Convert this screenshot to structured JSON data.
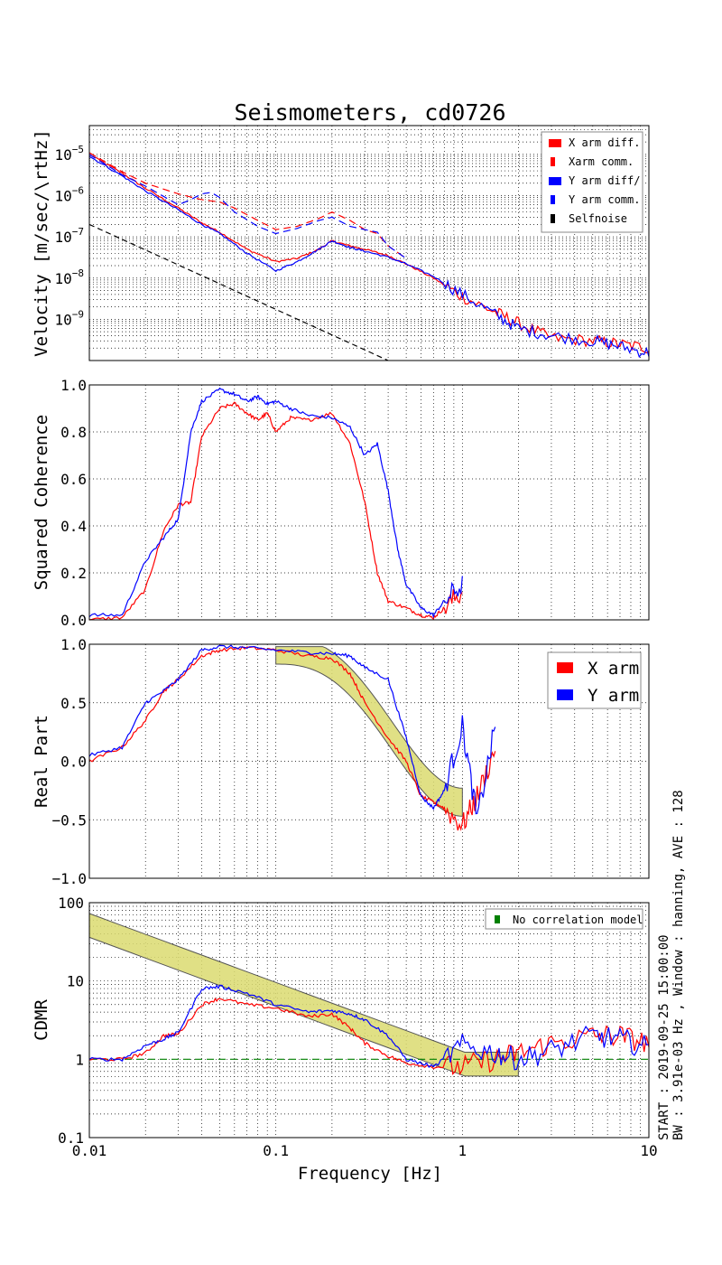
{
  "figure": {
    "title": "Seismometers, cd0726",
    "xlabel": "Frequency [Hz]",
    "side_note_1": "START : 2019-09-25 15:00:00",
    "side_note_2": "BW : 3.91e-03 Hz , Window : hanning, AVE : 128"
  },
  "chart_data": [
    {
      "type": "line",
      "ylabel": "Velocity [m/sec/\\rtHz]",
      "xscale": "log",
      "yscale": "log",
      "xlim": [
        0.01,
        10
      ],
      "ylim": [
        1e-10,
        5e-05
      ],
      "ytick_labels": [
        "10^-5",
        "10^-6",
        "10^-7",
        "10^-8",
        "10^-9"
      ],
      "grid": true,
      "legend": "top-right",
      "series": [
        {
          "name": "X arm diff.",
          "color": "#ff0000",
          "style": "solid",
          "x": [
            0.01,
            0.015,
            0.02,
            0.03,
            0.04,
            0.05,
            0.07,
            0.1,
            0.13,
            0.17,
            0.2,
            0.25,
            0.3,
            0.4,
            0.5,
            0.7,
            1,
            1.5,
            2,
            3,
            5,
            7,
            10
          ],
          "y": [
            1e-05,
            3.5e-06,
            1.5e-06,
            5e-07,
            2.2e-07,
            1.3e-07,
            5e-08,
            2.5e-08,
            3e-08,
            5e-08,
            8e-08,
            6e-08,
            5e-08,
            3.5e-08,
            2.2e-08,
            1e-08,
            3.5e-09,
            1.5e-09,
            8e-10,
            3.5e-10,
            3e-10,
            2.5e-10,
            2e-10
          ]
        },
        {
          "name": "Xarm comm.",
          "color": "#ff0000",
          "style": "dashed",
          "x": [
            0.01,
            0.015,
            0.02,
            0.03,
            0.04,
            0.05,
            0.06,
            0.08,
            0.1,
            0.13,
            0.17,
            0.2,
            0.25,
            0.3,
            0.35,
            0.4,
            0.5
          ],
          "y": [
            1.1e-05,
            3.8e-06,
            2e-06,
            1.1e-06,
            8e-07,
            7e-07,
            5e-07,
            2.5e-07,
            1.5e-07,
            1.8e-07,
            2.8e-07,
            4e-07,
            2.5e-07,
            1.5e-07,
            1.2e-07,
            6e-08,
            3e-08
          ]
        },
        {
          "name": "Y arm diff/",
          "color": "#0000ff",
          "style": "solid",
          "x": [
            0.01,
            0.015,
            0.02,
            0.03,
            0.04,
            0.05,
            0.07,
            0.1,
            0.13,
            0.17,
            0.2,
            0.25,
            0.3,
            0.4,
            0.5,
            0.7,
            1,
            1.5,
            2,
            3,
            5,
            7,
            10
          ],
          "y": [
            9e-06,
            3e-06,
            1.3e-06,
            4.5e-07,
            2e-07,
            1.2e-07,
            4e-08,
            1.5e-08,
            2.5e-08,
            5e-08,
            8e-08,
            5.5e-08,
            4.5e-08,
            3.2e-08,
            2.2e-08,
            1.1e-08,
            4e-09,
            1.3e-09,
            6e-10,
            4e-10,
            3e-10,
            2.2e-10,
            1.5e-10
          ]
        },
        {
          "name": "Y arm comm.",
          "color": "#0000ff",
          "style": "dashed",
          "x": [
            0.01,
            0.015,
            0.02,
            0.03,
            0.035,
            0.04,
            0.045,
            0.05,
            0.06,
            0.08,
            0.1,
            0.13,
            0.17,
            0.2,
            0.25,
            0.3,
            0.35,
            0.4,
            0.5
          ],
          "y": [
            1e-05,
            3.2e-06,
            1.7e-06,
            6e-07,
            8e-07,
            1.1e-06,
            1.2e-06,
            9e-07,
            4e-07,
            1.8e-07,
            1.2e-07,
            1.6e-07,
            2.5e-07,
            3e-07,
            1.8e-07,
            1.5e-07,
            1.3e-07,
            6e-08,
            3e-08
          ]
        },
        {
          "name": "Selfnoise",
          "color": "#000000",
          "style": "dashed",
          "x": [
            0.01,
            0.4
          ],
          "y": [
            2e-07,
            1e-10
          ]
        }
      ]
    },
    {
      "type": "line",
      "ylabel": "Squared Coherence",
      "xscale": "log",
      "yscale": "linear",
      "xlim": [
        0.01,
        10
      ],
      "ylim": [
        0,
        1
      ],
      "ytick_labels": [
        "0.0",
        "0.2",
        "0.4",
        "0.6",
        "0.8",
        "1.0"
      ],
      "grid": true,
      "series": [
        {
          "color": "#ff0000",
          "x": [
            0.01,
            0.015,
            0.02,
            0.025,
            0.03,
            0.035,
            0.04,
            0.05,
            0.06,
            0.07,
            0.08,
            0.09,
            0.1,
            0.12,
            0.15,
            0.2,
            0.25,
            0.3,
            0.35,
            0.4,
            0.5,
            0.6,
            0.7,
            0.8,
            1
          ],
          "y": [
            0,
            0.01,
            0.13,
            0.38,
            0.49,
            0.5,
            0.78,
            0.9,
            0.92,
            0.88,
            0.85,
            0.88,
            0.8,
            0.86,
            0.85,
            0.88,
            0.75,
            0.5,
            0.2,
            0.08,
            0.05,
            0.02,
            0.01,
            0.05,
            0.12
          ]
        },
        {
          "color": "#0000ff",
          "x": [
            0.01,
            0.015,
            0.02,
            0.025,
            0.03,
            0.035,
            0.04,
            0.05,
            0.06,
            0.07,
            0.08,
            0.09,
            0.1,
            0.12,
            0.15,
            0.2,
            0.25,
            0.3,
            0.35,
            0.4,
            0.45,
            0.5,
            0.6,
            0.7,
            0.8,
            1
          ],
          "y": [
            0.02,
            0.02,
            0.25,
            0.35,
            0.43,
            0.8,
            0.93,
            0.98,
            0.96,
            0.93,
            0.95,
            0.92,
            0.93,
            0.9,
            0.87,
            0.86,
            0.82,
            0.7,
            0.75,
            0.55,
            0.3,
            0.15,
            0.05,
            0.02,
            0.08,
            0.15
          ]
        }
      ]
    },
    {
      "type": "line",
      "ylabel": "Real Part",
      "xscale": "log",
      "yscale": "linear",
      "xlim": [
        0.01,
        10
      ],
      "ylim": [
        -1,
        1
      ],
      "ytick_labels": [
        "-1.0",
        "-0.5",
        "0.0",
        "0.5",
        "1.0"
      ],
      "grid": true,
      "legend": "top-right",
      "series": [
        {
          "name": "X arm",
          "color": "#ff0000",
          "x": [
            0.01,
            0.015,
            0.02,
            0.025,
            0.03,
            0.04,
            0.05,
            0.07,
            0.1,
            0.15,
            0.2,
            0.25,
            0.3,
            0.4,
            0.5,
            0.6,
            0.7,
            0.8,
            1,
            1.2,
            1.5
          ],
          "y": [
            0,
            0.12,
            0.35,
            0.6,
            0.7,
            0.9,
            0.95,
            0.97,
            0.95,
            0.9,
            0.88,
            0.75,
            0.5,
            0.2,
            0,
            -0.3,
            -0.35,
            -0.4,
            -0.55,
            -0.3,
            0.1
          ]
        },
        {
          "name": "Y arm",
          "color": "#0000ff",
          "x": [
            0.01,
            0.015,
            0.02,
            0.025,
            0.03,
            0.04,
            0.05,
            0.07,
            0.1,
            0.15,
            0.2,
            0.25,
            0.3,
            0.4,
            0.5,
            0.6,
            0.7,
            0.8,
            1,
            1.2,
            1.5
          ],
          "y": [
            0.05,
            0.12,
            0.5,
            0.6,
            0.7,
            0.95,
            0.98,
            0.97,
            0.95,
            0.93,
            0.92,
            0.9,
            0.8,
            0.7,
            0.2,
            -0.3,
            -0.4,
            -0.25,
            0.3,
            -0.5,
            0.3
          ]
        }
      ]
    },
    {
      "type": "line",
      "ylabel": "CDMR",
      "xscale": "log",
      "yscale": "log",
      "xlim": [
        0.01,
        10
      ],
      "ylim": [
        0.1,
        100
      ],
      "ytick_labels": [
        "100",
        "10",
        "1",
        "0.1"
      ],
      "xtick_labels": [
        "0.01",
        "0.1",
        "1",
        "10"
      ],
      "grid": true,
      "legend": "top-right",
      "series": [
        {
          "name": "No correlation model",
          "color": "#008000",
          "style": "dashed",
          "x": [
            0.01,
            10
          ],
          "y": [
            1,
            1
          ]
        },
        {
          "color": "#ff0000",
          "x": [
            0.01,
            0.015,
            0.02,
            0.025,
            0.03,
            0.04,
            0.05,
            0.07,
            0.1,
            0.15,
            0.2,
            0.25,
            0.3,
            0.4,
            0.5,
            0.7,
            1,
            1.5,
            2,
            3,
            5,
            7,
            10
          ],
          "y": [
            1,
            1,
            1.2,
            2,
            2.1,
            5,
            6,
            5,
            4.5,
            3.5,
            3.8,
            2.5,
            1.6,
            1.1,
            0.9,
            0.8,
            0.8,
            1,
            1.2,
            1.6,
            2,
            2,
            1.6
          ]
        },
        {
          "color": "#0000ff",
          "x": [
            0.01,
            0.015,
            0.02,
            0.025,
            0.03,
            0.04,
            0.05,
            0.07,
            0.1,
            0.15,
            0.2,
            0.25,
            0.3,
            0.4,
            0.5,
            0.7,
            1,
            1.5,
            2,
            3,
            5,
            7,
            10
          ],
          "y": [
            1,
            1,
            1.5,
            1.8,
            2.2,
            8,
            8.5,
            7,
            5,
            4,
            4.2,
            3.8,
            3.2,
            2,
            1,
            0.8,
            1.5,
            1.2,
            1,
            1.3,
            2,
            1.8,
            1.4
          ]
        }
      ]
    }
  ]
}
